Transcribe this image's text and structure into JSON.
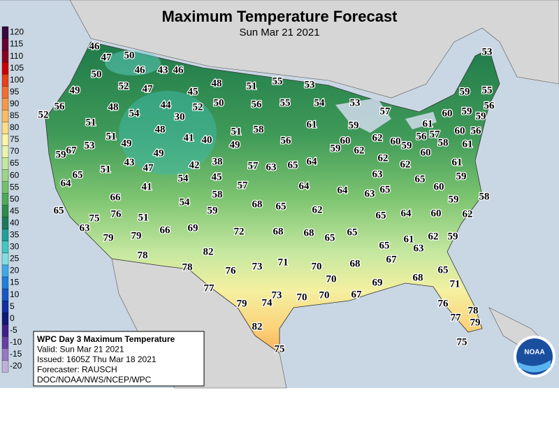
{
  "header": {
    "title": "Maximum Temperature Forecast",
    "subtitle": "Sun Mar 21 2021"
  },
  "legend": {
    "ticks": [
      120,
      115,
      110,
      105,
      100,
      95,
      90,
      85,
      80,
      75,
      70,
      65,
      60,
      55,
      50,
      45,
      40,
      35,
      30,
      25,
      20,
      15,
      10,
      5,
      0,
      -5,
      -10,
      -15,
      -20
    ],
    "colors": [
      "#3a0a3a",
      "#660033",
      "#8b0022",
      "#cc0000",
      "#e8401a",
      "#f07030",
      "#f89848",
      "#fbbc60",
      "#fddc88",
      "#fdf4a8",
      "#e8f4b0",
      "#c4e8a0",
      "#9cd488",
      "#74c06c",
      "#4ea858",
      "#2e8c48",
      "#1c7a5a",
      "#20a098",
      "#40c8c0",
      "#80e0e0",
      "#40a8e8",
      "#2080d8",
      "#1858c0",
      "#1030a0",
      "#101878",
      "#402088",
      "#6840a0",
      "#9878c0",
      "#c0b0d8"
    ]
  },
  "info": {
    "lines": [
      "WPC Day 3 Maximum Temperature",
      "Valid: Sun Mar 21 2021",
      "Issued: 1605Z Thu Mar 18 2021",
      "Forecaster: RAUSCH",
      "DOC/NOAA/NWS/NCEP/WPC"
    ]
  },
  "logo": "NOAA",
  "stations": [
    46,
    47,
    50,
    50,
    46,
    43,
    46,
    49,
    52,
    47,
    45,
    48,
    51,
    55,
    53,
    56,
    48,
    54,
    44,
    52,
    50,
    56,
    55,
    54,
    53,
    52,
    51,
    30,
    58,
    61,
    57,
    59,
    48,
    51,
    53,
    51,
    49,
    41,
    40,
    49,
    56,
    60,
    59,
    62,
    62,
    60,
    59,
    61,
    56,
    57,
    58,
    60,
    60,
    59,
    56,
    59,
    56,
    59,
    55,
    53,
    61,
    60,
    62,
    62,
    63,
    67,
    59,
    51,
    43,
    47,
    49,
    42,
    38,
    57,
    63,
    65,
    64,
    61,
    64,
    65,
    41,
    54,
    45,
    57,
    64,
    64,
    63,
    65,
    65,
    60,
    59,
    58,
    66,
    58,
    54,
    68,
    65,
    62,
    59,
    65,
    75,
    76,
    51,
    65,
    64,
    60,
    59,
    62,
    63,
    79,
    79,
    66,
    69,
    72,
    68,
    68,
    65,
    65,
    61,
    62,
    59,
    63,
    78,
    82,
    65,
    67,
    71,
    73,
    76,
    78,
    70,
    68,
    65,
    70,
    69,
    68,
    71,
    77,
    73,
    74,
    70,
    70,
    67,
    79,
    76,
    78,
    77,
    79,
    82,
    75,
    75
  ]
}
